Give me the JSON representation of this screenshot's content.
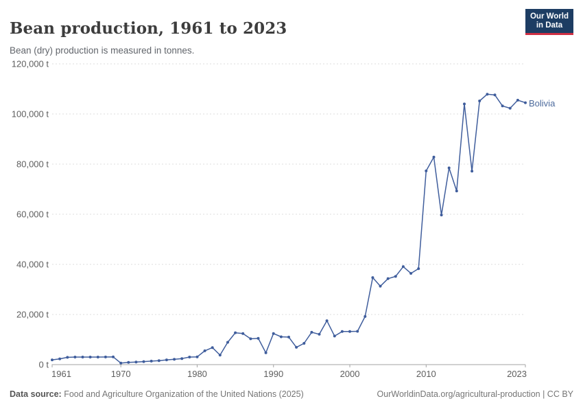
{
  "header": {
    "title": "Bean production, 1961 to 2023",
    "subtitle": "Bean (dry) production is measured in tonnes.",
    "logo": {
      "line1": "Our World",
      "line2": "in Data"
    }
  },
  "chart_data": {
    "type": "line",
    "title": "Bean production, 1961 to 2023",
    "ylabel": "",
    "xlabel": "",
    "unit": "t",
    "grid": "horizontal-dashed",
    "legend_position": "end-of-line-label",
    "xlim": [
      1961,
      2023
    ],
    "ylim": [
      0,
      120000
    ],
    "x_ticks": [
      1961,
      1970,
      1980,
      1990,
      2000,
      2010,
      2023
    ],
    "y_ticks": [
      0,
      20000,
      40000,
      60000,
      80000,
      100000,
      120000
    ],
    "y_tick_suffix": " t",
    "series": [
      {
        "name": "Bolivia",
        "color": "#3f5d9c",
        "x": [
          1961,
          1962,
          1963,
          1964,
          1965,
          1966,
          1967,
          1968,
          1969,
          1970,
          1971,
          1972,
          1973,
          1974,
          1975,
          1976,
          1977,
          1978,
          1979,
          1980,
          1981,
          1982,
          1983,
          1984,
          1985,
          1986,
          1987,
          1988,
          1989,
          1990,
          1991,
          1992,
          1993,
          1994,
          1995,
          1996,
          1997,
          1998,
          1999,
          2000,
          2001,
          2002,
          2003,
          2004,
          2005,
          2006,
          2007,
          2008,
          2009,
          2010,
          2011,
          2012,
          2013,
          2014,
          2015,
          2016,
          2017,
          2018,
          2019,
          2020,
          2021,
          2022,
          2023
        ],
        "values": [
          1900,
          2300,
          2900,
          3000,
          3000,
          3000,
          3000,
          3050,
          3100,
          600,
          900,
          1050,
          1200,
          1400,
          1600,
          1900,
          2100,
          2400,
          3000,
          3100,
          5500,
          6800,
          3800,
          8900,
          12700,
          12400,
          10300,
          10500,
          4700,
          12400,
          11100,
          11000,
          6900,
          8500,
          12900,
          12100,
          17500,
          11400,
          13200,
          13200,
          13300,
          19200,
          34700,
          31300,
          34300,
          35200,
          39100,
          36400,
          38300,
          77300,
          82800,
          59700,
          78500,
          69300,
          104000,
          77200,
          105200,
          107900,
          107600,
          103200,
          102300,
          105500,
          104500
        ]
      }
    ]
  },
  "footer": {
    "source_label": "Data source:",
    "source_text": "Food and Agriculture Organization of the United Nations (2025)",
    "citation": "OurWorldinData.org/agricultural-production | CC BY"
  },
  "colors": {
    "line": "#3f5d9c",
    "entity_label": "#4c6a9c",
    "logo_background": "#1d3d63",
    "logo_stripe": "#cf2f43",
    "gridline": "#dcdcdc",
    "axis": "#a3a3a3"
  }
}
